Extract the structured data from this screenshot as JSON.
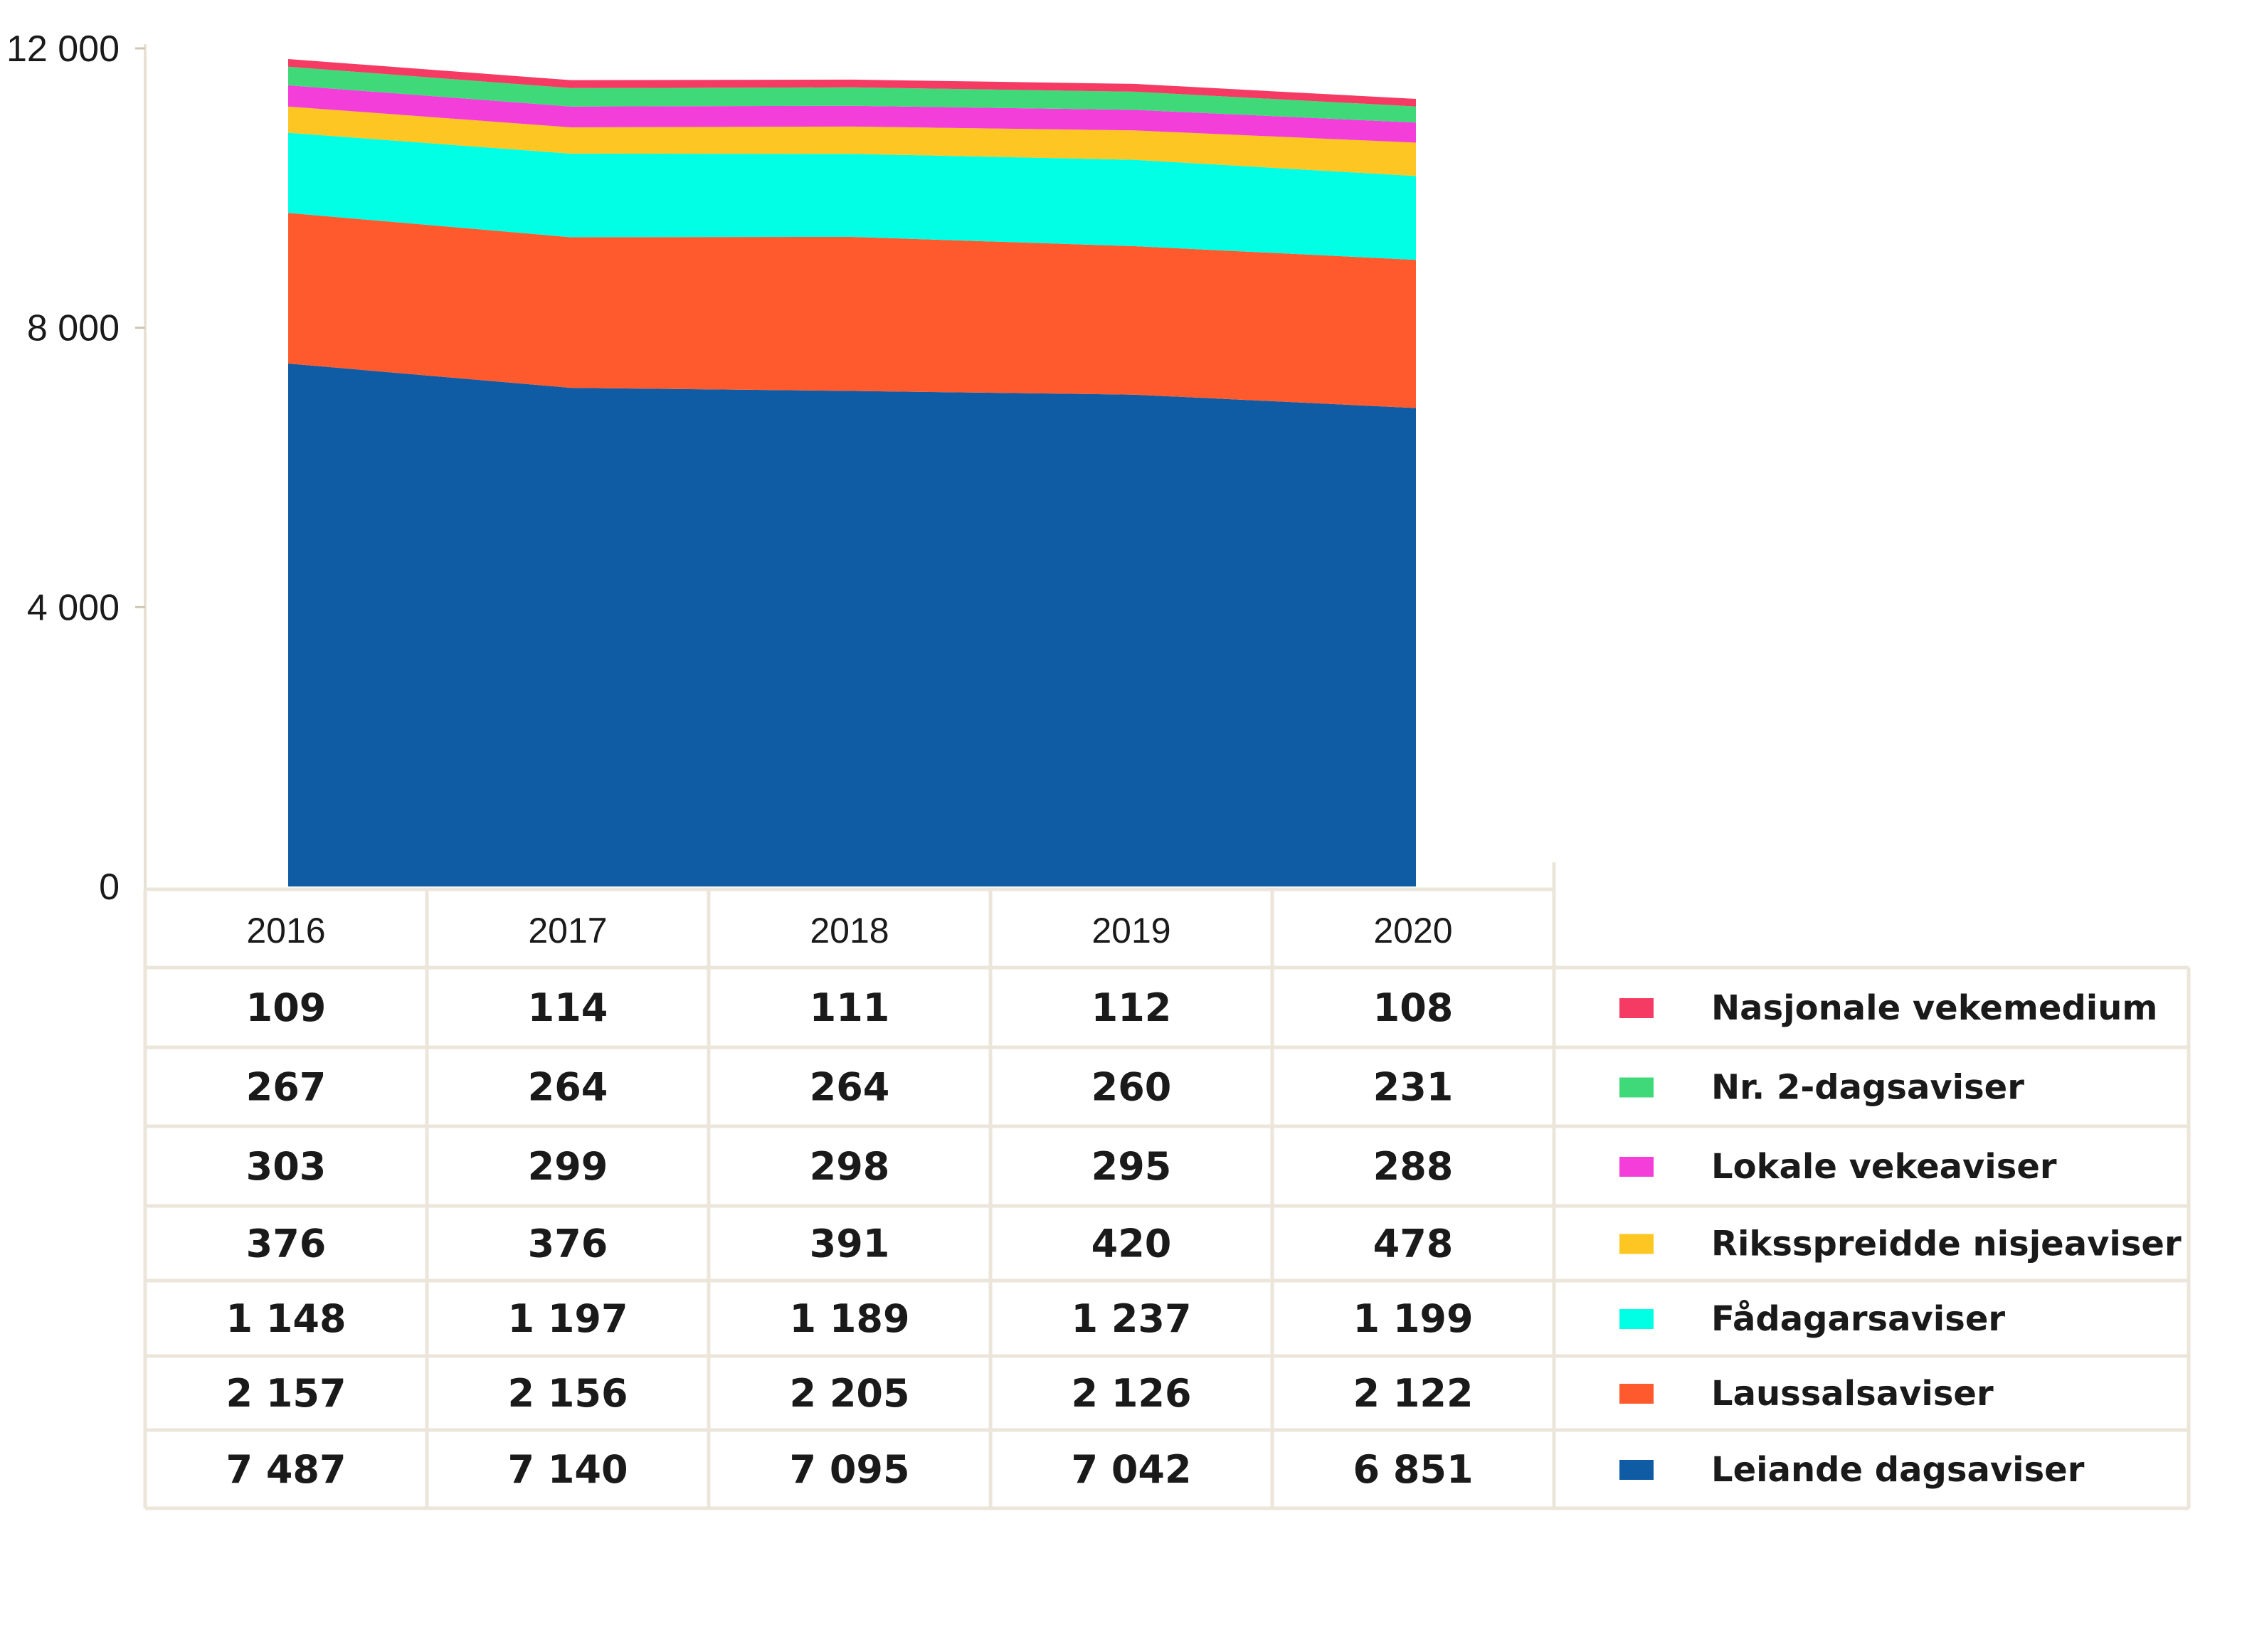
{
  "chart_data": {
    "type": "area",
    "stacked": true,
    "title": "",
    "xlabel": "",
    "ylabel": "",
    "ylim": [
      0,
      12000
    ],
    "yticks": [
      0,
      4000,
      8000,
      12000
    ],
    "ytick_labels": [
      "0",
      "4 000",
      "8 000",
      "12 000"
    ],
    "grid": false,
    "legend_position": "right, beside data table",
    "x": [
      "2016",
      "2017",
      "2018",
      "2019",
      "2020"
    ],
    "series": [
      {
        "name": "Leiande dagsaviser",
        "color": "#0f5ca5",
        "values": [
          7487,
          7140,
          7095,
          7042,
          6851
        ],
        "labels": [
          "7 487",
          "7 140",
          "7 095",
          "7 042",
          "6 851"
        ]
      },
      {
        "name": "Laussalsaviser",
        "color": "#ff5a2d",
        "values": [
          2157,
          2156,
          2205,
          2126,
          2122
        ],
        "labels": [
          "2 157",
          "2 156",
          "2 205",
          "2 126",
          "2 122"
        ]
      },
      {
        "name": "Fådagarsaviser",
        "color": "#00ffe5",
        "values": [
          1148,
          1197,
          1189,
          1237,
          1199
        ],
        "labels": [
          "1 148",
          "1 197",
          "1 189",
          "1 237",
          "1 199"
        ]
      },
      {
        "name": "Riksspreidde nisjeaviser",
        "color": "#fdc623",
        "values": [
          376,
          376,
          391,
          420,
          478
        ],
        "labels": [
          "376",
          "376",
          "391",
          "420",
          "478"
        ]
      },
      {
        "name": "Lokale vekeaviser",
        "color": "#f43ed9",
        "values": [
          303,
          299,
          298,
          295,
          288
        ],
        "labels": [
          "303",
          "299",
          "298",
          "295",
          "288"
        ]
      },
      {
        "name": "Nr. 2-dagsaviser",
        "color": "#3fd97a",
        "values": [
          267,
          264,
          264,
          260,
          231
        ],
        "labels": [
          "267",
          "264",
          "264",
          "260",
          "231"
        ]
      },
      {
        "name": "Nasjonale vekemedium",
        "color": "#f53b63",
        "values": [
          109,
          114,
          111,
          112,
          108
        ],
        "labels": [
          "109",
          "114",
          "111",
          "112",
          "108"
        ]
      }
    ],
    "table_color": "#ece6da"
  }
}
